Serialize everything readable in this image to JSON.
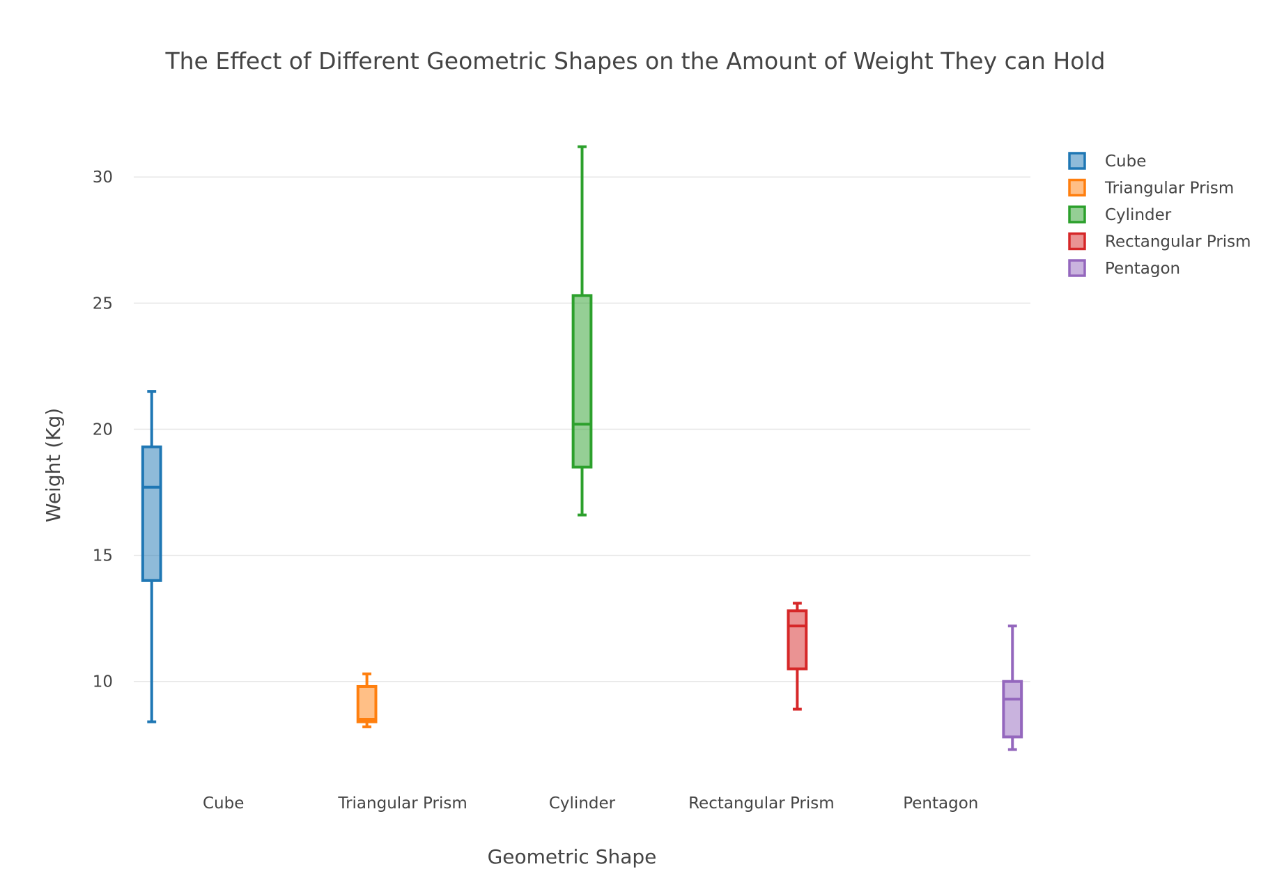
{
  "chart_data": {
    "type": "box",
    "title": "The Effect of Different Geometric Shapes on the Amount of Weight They can Hold",
    "xlabel": "Geometric Shape",
    "ylabel": "Weight (Kg)",
    "ylim": [
      6.1,
      32.6
    ],
    "yticks": [
      10,
      15,
      20,
      25,
      30
    ],
    "grid": true,
    "legend_position": "top-right",
    "categories": [
      "Cube",
      "Triangular Prism",
      "Cylinder",
      "Rectangular Prism",
      "Pentagon"
    ],
    "series": [
      {
        "name": "Cube",
        "color": "#1f77b4",
        "fill": "rgba(31,119,180,0.5)",
        "min": 8.4,
        "q1": 14.0,
        "median": 17.7,
        "q3": 19.3,
        "max": 21.5
      },
      {
        "name": "Triangular Prism",
        "color": "#ff7f0e",
        "fill": "rgba(255,127,14,0.5)",
        "min": 8.2,
        "q1": 8.4,
        "median": 8.5,
        "q3": 9.8,
        "max": 10.3
      },
      {
        "name": "Cylinder",
        "color": "#2ca02c",
        "fill": "rgba(44,160,44,0.5)",
        "min": 16.6,
        "q1": 18.5,
        "median": 20.2,
        "q3": 25.3,
        "max": 31.2
      },
      {
        "name": "Rectangular Prism",
        "color": "#d62728",
        "fill": "rgba(214,39,40,0.5)",
        "min": 8.9,
        "q1": 10.5,
        "median": 12.2,
        "q3": 12.8,
        "max": 13.1
      },
      {
        "name": "Pentagon",
        "color": "#9467bd",
        "fill": "rgba(148,103,189,0.5)",
        "min": 7.3,
        "q1": 7.8,
        "median": 9.3,
        "q3": 10.0,
        "max": 12.2
      }
    ]
  }
}
